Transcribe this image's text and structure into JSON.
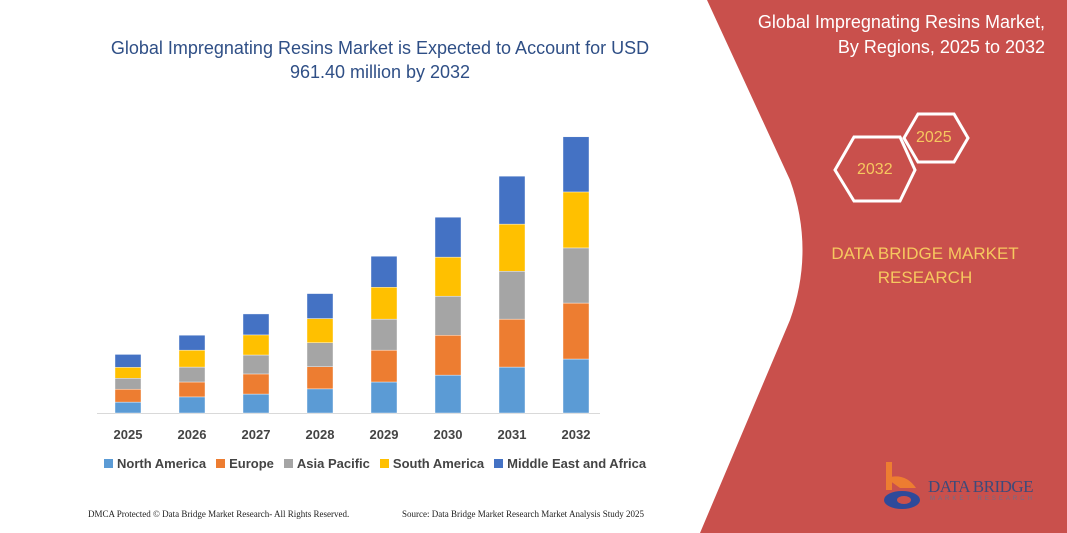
{
  "header": {
    "title": "Global Impregnating Resins Market is Expected to Account for USD 961.40 million by 2032"
  },
  "side_panel": {
    "title_line1": "Global Impregnating Resins Market,",
    "title_line2": "By Regions, 2025 to 2032",
    "hex_start": "2025",
    "hex_end": "2032",
    "brand_line1": "DATA BRIDGE MARKET",
    "brand_line2": "RESEARCH",
    "logo_text": "DATA BRIDGE",
    "logo_sub": "MARKET RESEARCH",
    "panel_color": "#c9504c",
    "accent_color": "#f6c85f"
  },
  "footer": {
    "left": "DMCA Protected © Data Bridge Market Research- All Rights Reserved.",
    "right": "Source: Data Bridge Market Research Market Analysis Study 2025"
  },
  "chart_data": {
    "type": "bar",
    "stacked": true,
    "unit": "USD million (estimated)",
    "categories": [
      "2025",
      "2026",
      "2027",
      "2028",
      "2029",
      "2030",
      "2031",
      "2032"
    ],
    "series": [
      {
        "name": "North America",
        "color": "#5b9bd5",
        "values": [
          38,
          56,
          66,
          84,
          108,
          132,
          160,
          188
        ]
      },
      {
        "name": "Europe",
        "color": "#ed7d31",
        "values": [
          45,
          52,
          70,
          77,
          111,
          139,
          167,
          195
        ]
      },
      {
        "name": "Asia Pacific",
        "color": "#a5a5a5",
        "values": [
          38,
          52,
          66,
          84,
          108,
          136,
          167,
          192
        ]
      },
      {
        "name": "South America",
        "color": "#ffc000",
        "values": [
          38,
          59,
          70,
          84,
          111,
          136,
          164,
          195
        ]
      },
      {
        "name": "Middle East and Africa",
        "color": "#4472c4",
        "values": [
          45,
          52,
          73,
          87,
          108,
          139,
          167,
          192
        ]
      }
    ],
    "ylim": [
      0,
      961.4
    ],
    "y_axis_shown": false,
    "grid": false,
    "legend_position": "bottom"
  }
}
